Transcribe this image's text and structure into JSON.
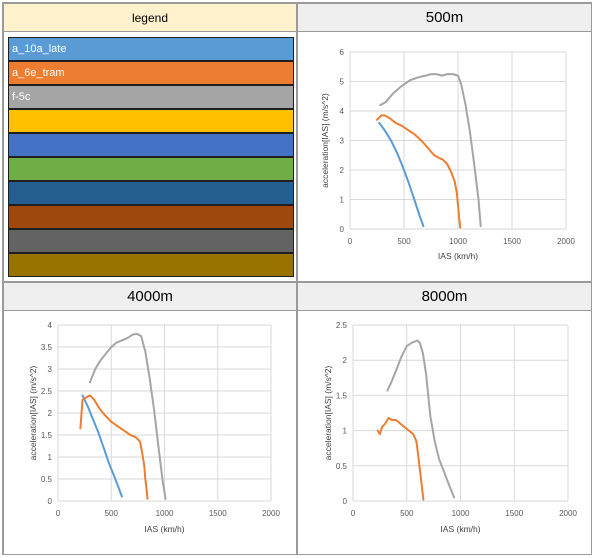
{
  "legend": {
    "title": "legend",
    "items": [
      {
        "label": "a_10a_late",
        "color": "#5b9bd5"
      },
      {
        "label": "a_6e_tram",
        "color": "#ed7d31"
      },
      {
        "label": "f-5c",
        "color": "#a5a5a5"
      },
      {
        "label": "",
        "color": "#ffc000"
      },
      {
        "label": "",
        "color": "#4472c4"
      },
      {
        "label": "",
        "color": "#70ad47"
      },
      {
        "label": "",
        "color": "#255e91"
      },
      {
        "label": "",
        "color": "#9e480e"
      },
      {
        "label": "",
        "color": "#636363"
      },
      {
        "label": "",
        "color": "#997300"
      }
    ]
  },
  "chart_data": [
    {
      "type": "line",
      "title": "500m",
      "xlabel": "IAS (km/h)",
      "ylabel": "acceleration[IAS] (m/s^2)",
      "xlim": [
        0,
        2000
      ],
      "ylim": [
        0,
        6
      ],
      "xticks": [
        0,
        500,
        1000,
        1500,
        2000
      ],
      "yticks": [
        0,
        1,
        2,
        3,
        4,
        5,
        6
      ],
      "grid": true,
      "series": [
        {
          "name": "a_10a_late",
          "color": "#5b9bd5",
          "x": [
            270,
            320,
            380,
            440,
            500,
            550,
            600,
            640,
            680
          ],
          "y": [
            3.6,
            3.35,
            3.0,
            2.55,
            2.0,
            1.5,
            0.95,
            0.5,
            0.1
          ]
        },
        {
          "name": "a_6e_tram",
          "color": "#ed7d31",
          "x": [
            250,
            290,
            320,
            370,
            420,
            480,
            540,
            600,
            660,
            720,
            780,
            830,
            860,
            900,
            940,
            970,
            990,
            1000,
            1010,
            1020
          ],
          "y": [
            3.7,
            3.85,
            3.85,
            3.75,
            3.6,
            3.5,
            3.35,
            3.2,
            3.0,
            2.75,
            2.5,
            2.4,
            2.35,
            2.2,
            1.9,
            1.6,
            1.2,
            0.8,
            0.4,
            0.05
          ]
        },
        {
          "name": "f-5c",
          "color": "#a5a5a5",
          "x": [
            280,
            330,
            400,
            480,
            560,
            640,
            700,
            750,
            800,
            850,
            900,
            950,
            1000,
            1030,
            1070,
            1110,
            1150,
            1190,
            1210
          ],
          "y": [
            4.2,
            4.3,
            4.6,
            4.85,
            5.05,
            5.15,
            5.2,
            5.25,
            5.25,
            5.2,
            5.25,
            5.25,
            5.2,
            4.9,
            4.2,
            3.3,
            2.2,
            1.0,
            0.1
          ]
        }
      ]
    },
    {
      "type": "line",
      "title": "4000m",
      "xlabel": "IAS (km/h)",
      "ylabel": "acceleration[IAS] (m/s^2)",
      "xlim": [
        0,
        2000
      ],
      "ylim": [
        0,
        4
      ],
      "xticks": [
        0,
        500,
        1000,
        1500,
        2000
      ],
      "yticks": [
        0,
        0.5,
        1,
        1.5,
        2,
        2.5,
        3,
        3.5,
        4
      ],
      "grid": true,
      "series": [
        {
          "name": "a_10a_late",
          "color": "#5b9bd5",
          "x": [
            230,
            280,
            330,
            380,
            430,
            480,
            530,
            570,
            600
          ],
          "y": [
            2.4,
            2.15,
            1.85,
            1.55,
            1.2,
            0.85,
            0.55,
            0.3,
            0.1
          ]
        },
        {
          "name": "a_6e_tram",
          "color": "#ed7d31",
          "x": [
            210,
            230,
            260,
            300,
            340,
            390,
            440,
            500,
            560,
            620,
            680,
            730,
            770,
            790,
            810,
            820,
            830,
            840
          ],
          "y": [
            1.65,
            2.3,
            2.35,
            2.4,
            2.3,
            2.1,
            1.95,
            1.8,
            1.7,
            1.6,
            1.5,
            1.45,
            1.35,
            1.1,
            0.8,
            0.5,
            0.3,
            0.05
          ]
        },
        {
          "name": "f-5c",
          "color": "#a5a5a5",
          "x": [
            300,
            350,
            400,
            450,
            500,
            550,
            600,
            650,
            700,
            740,
            780,
            820,
            860,
            900,
            940,
            980,
            1010
          ],
          "y": [
            2.7,
            3.0,
            3.2,
            3.35,
            3.5,
            3.6,
            3.65,
            3.7,
            3.78,
            3.8,
            3.75,
            3.4,
            2.8,
            2.1,
            1.3,
            0.5,
            0.05
          ]
        }
      ]
    },
    {
      "type": "line",
      "title": "8000m",
      "xlabel": "IAS (km/h)",
      "ylabel": "acceleration[IAS] (m/s^2)",
      "xlim": [
        0,
        2000
      ],
      "ylim": [
        0,
        2.5
      ],
      "xticks": [
        0,
        500,
        1000,
        1500,
        2000
      ],
      "yticks": [
        0,
        0.5,
        1,
        1.5,
        2,
        2.5
      ],
      "grid": true,
      "series": [
        {
          "name": "a_6e_tram",
          "color": "#ed7d31",
          "x": [
            230,
            250,
            270,
            300,
            330,
            360,
            400,
            440,
            480,
            520,
            560,
            590,
            610,
            630,
            645,
            655
          ],
          "y": [
            1.0,
            0.95,
            1.05,
            1.1,
            1.18,
            1.15,
            1.15,
            1.1,
            1.05,
            1.0,
            0.95,
            0.85,
            0.6,
            0.35,
            0.15,
            0.02
          ]
        },
        {
          "name": "f-5c",
          "color": "#a5a5a5",
          "x": [
            320,
            360,
            400,
            450,
            500,
            550,
            600,
            620,
            650,
            680,
            720,
            760,
            800,
            850,
            900,
            940
          ],
          "y": [
            1.57,
            1.7,
            1.85,
            2.05,
            2.2,
            2.25,
            2.28,
            2.25,
            2.1,
            1.8,
            1.2,
            0.85,
            0.6,
            0.4,
            0.2,
            0.05
          ]
        }
      ]
    }
  ]
}
